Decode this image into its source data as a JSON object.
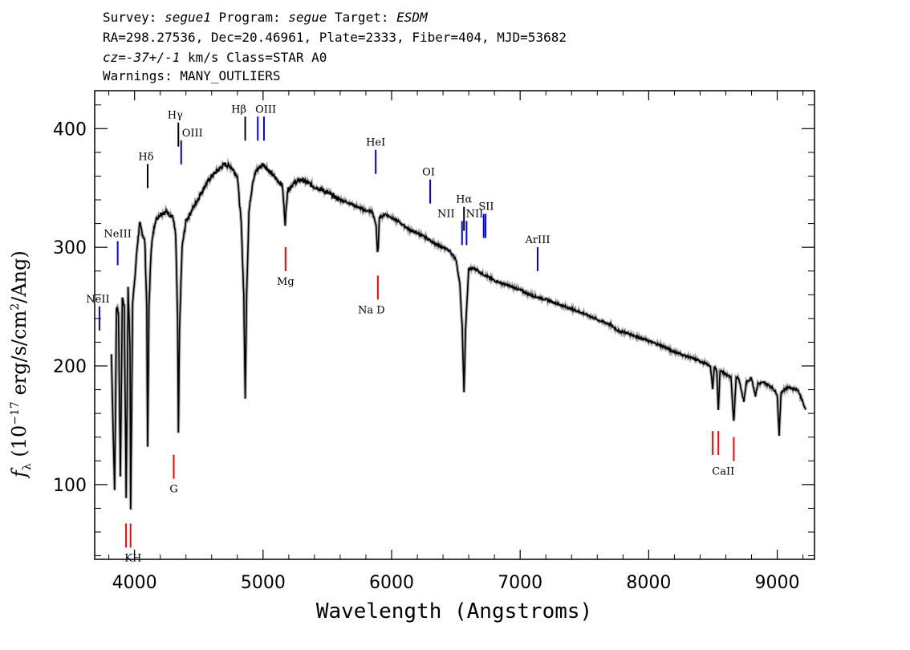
{
  "header": {
    "survey_label": "Survey:",
    "survey_value": "segue1",
    "program_label": "Program:",
    "program_value": "segue",
    "target_label": "Target:",
    "target_value": "ESDM",
    "line2": "RA=298.27536, Dec=20.46961, Plate=2333, Fiber=404, MJD=53682",
    "cz_label": "cz=",
    "cz_value": "-37+/-1",
    "cz_rest": " km/s Class=STAR A0",
    "warnings": "Warnings: MANY_OUTLIERS"
  },
  "chart_data": {
    "type": "line",
    "title": "",
    "xlabel": "Wavelength (Angstroms)",
    "ylabel": "f_λ (10^-17 erg/s/cm^2/Ang)",
    "xlim": [
      3690,
      9290
    ],
    "ylim": [
      37,
      432
    ],
    "x_ticks": [
      4000,
      5000,
      6000,
      7000,
      8000,
      9000
    ],
    "y_ticks": [
      100,
      200,
      300,
      400
    ],
    "grid": false,
    "series": [
      {
        "color": "#000000",
        "points": [
          [
            3820,
            210
          ],
          [
            3835,
            140
          ],
          [
            3845,
            95
          ],
          [
            3860,
            250
          ],
          [
            3875,
            245
          ],
          [
            3890,
            105
          ],
          [
            3905,
            258
          ],
          [
            3920,
            250
          ],
          [
            3935,
            90
          ],
          [
            3950,
            265
          ],
          [
            3965,
            215
          ],
          [
            3970,
            78
          ],
          [
            3985,
            255
          ],
          [
            4000,
            270
          ],
          [
            4020,
            300
          ],
          [
            4040,
            320
          ],
          [
            4060,
            312
          ],
          [
            4080,
            305
          ],
          [
            4095,
            250
          ],
          [
            4102,
            130
          ],
          [
            4112,
            250
          ],
          [
            4130,
            300
          ],
          [
            4160,
            322
          ],
          [
            4200,
            328
          ],
          [
            4250,
            330
          ],
          [
            4300,
            325
          ],
          [
            4320,
            310
          ],
          [
            4335,
            240
          ],
          [
            4341,
            142
          ],
          [
            4350,
            230
          ],
          [
            4370,
            300
          ],
          [
            4400,
            322
          ],
          [
            4450,
            332
          ],
          [
            4500,
            342
          ],
          [
            4550,
            352
          ],
          [
            4600,
            360
          ],
          [
            4650,
            365
          ],
          [
            4700,
            370
          ],
          [
            4750,
            368
          ],
          [
            4800,
            360
          ],
          [
            4830,
            320
          ],
          [
            4850,
            260
          ],
          [
            4861,
            172
          ],
          [
            4872,
            260
          ],
          [
            4890,
            330
          ],
          [
            4920,
            356
          ],
          [
            4950,
            365
          ],
          [
            5000,
            370
          ],
          [
            5050,
            364
          ],
          [
            5100,
            358
          ],
          [
            5150,
            352
          ],
          [
            5172,
            320
          ],
          [
            5190,
            348
          ],
          [
            5250,
            355
          ],
          [
            5300,
            357
          ],
          [
            5350,
            354
          ],
          [
            5400,
            351
          ],
          [
            5450,
            349
          ],
          [
            5500,
            346
          ],
          [
            5550,
            343
          ],
          [
            5600,
            340
          ],
          [
            5650,
            338
          ],
          [
            5700,
            336
          ],
          [
            5750,
            333
          ],
          [
            5800,
            331
          ],
          [
            5850,
            330
          ],
          [
            5880,
            318
          ],
          [
            5890,
            296
          ],
          [
            5896,
            300
          ],
          [
            5905,
            325
          ],
          [
            5950,
            328
          ],
          [
            6000,
            325
          ],
          [
            6050,
            322
          ],
          [
            6100,
            318
          ],
          [
            6150,
            314
          ],
          [
            6200,
            312
          ],
          [
            6250,
            309
          ],
          [
            6300,
            306
          ],
          [
            6350,
            302
          ],
          [
            6400,
            300
          ],
          [
            6450,
            297
          ],
          [
            6500,
            290
          ],
          [
            6530,
            270
          ],
          [
            6550,
            230
          ],
          [
            6563,
            177
          ],
          [
            6575,
            230
          ],
          [
            6600,
            282
          ],
          [
            6650,
            282
          ],
          [
            6700,
            278
          ],
          [
            6800,
            272
          ],
          [
            6900,
            268
          ],
          [
            7000,
            264
          ],
          [
            7100,
            259
          ],
          [
            7200,
            256
          ],
          [
            7300,
            252
          ],
          [
            7400,
            248
          ],
          [
            7500,
            244
          ],
          [
            7600,
            239
          ],
          [
            7700,
            235
          ],
          [
            7770,
            229
          ],
          [
            7800,
            229
          ],
          [
            7900,
            225
          ],
          [
            8000,
            221
          ],
          [
            8100,
            217
          ],
          [
            8200,
            212
          ],
          [
            8300,
            208
          ],
          [
            8400,
            204
          ],
          [
            8480,
            200
          ],
          [
            8498,
            180
          ],
          [
            8510,
            200
          ],
          [
            8530,
            196
          ],
          [
            8542,
            162
          ],
          [
            8555,
            196
          ],
          [
            8600,
            193
          ],
          [
            8640,
            190
          ],
          [
            8662,
            153
          ],
          [
            8680,
            190
          ],
          [
            8700,
            190
          ],
          [
            8740,
            170
          ],
          [
            8760,
            186
          ],
          [
            8800,
            190
          ],
          [
            8830,
            175
          ],
          [
            8850,
            185
          ],
          [
            8900,
            186
          ],
          [
            8960,
            182
          ],
          [
            9000,
            176
          ],
          [
            9015,
            142
          ],
          [
            9030,
            178
          ],
          [
            9080,
            182
          ],
          [
            9120,
            181
          ],
          [
            9160,
            180
          ],
          [
            9190,
            172
          ],
          [
            9220,
            163
          ]
        ]
      }
    ],
    "emission_lines": [
      {
        "name": "NeII",
        "wave": 3727,
        "y": 240
      },
      {
        "name": "NeIII",
        "wave": 3869,
        "y": 295
      },
      {
        "name": "Hδ",
        "wave": 4102,
        "y": 360
      },
      {
        "name": "Hγ",
        "wave": 4341,
        "y": 395
      },
      {
        "name": "OIII",
        "wave": 4363,
        "y": 380
      },
      {
        "name": "Hβ",
        "wave": 4861,
        "y": 400
      },
      {
        "name": "OIII",
        "wave": 4959,
        "y": 400
      },
      {
        "name": "OIII",
        "wave": 5007,
        "y": 400
      },
      {
        "name": "HeI",
        "wave": 5876,
        "y": 372
      },
      {
        "name": "OI",
        "wave": 6300,
        "y": 347
      },
      {
        "name": "NII",
        "wave": 6548,
        "y": 312
      },
      {
        "name": "Hα",
        "wave": 6563,
        "y": 324
      },
      {
        "name": "NII",
        "wave": 6583,
        "y": 312
      },
      {
        "name": "SII",
        "wave": 6716,
        "y": 318
      },
      {
        "name": "SII",
        "wave": 6731,
        "y": 318
      },
      {
        "name": "ArIII",
        "wave": 7136,
        "y": 290
      }
    ],
    "absorption_lines": [
      {
        "name": "K",
        "wave": 3934,
        "y": 57
      },
      {
        "name": "H",
        "wave": 3969,
        "y": 57
      },
      {
        "name": "G",
        "wave": 4305,
        "y": 115
      },
      {
        "name": "Mg",
        "wave": 5175,
        "y": 290
      },
      {
        "name": "Na D",
        "wave": 5893,
        "y": 266
      },
      {
        "name": "CaII",
        "wave": 8498,
        "y": 135
      },
      {
        "name": "CaII",
        "wave": 8542,
        "y": 135
      },
      {
        "name": "CaII",
        "wave": 8662,
        "y": 130
      }
    ],
    "label_texts": {
      "NeII": "NeII",
      "NeIII": "NeIII",
      "Hdelta": "Hδ",
      "Hgamma": "Hγ",
      "OIII_a": "OIII",
      "Hbeta": "Hβ",
      "OIII_b": "OIII",
      "HeI": "HeI",
      "OI": "OI",
      "NII_a": "NII",
      "Halpha": "Hα",
      "NII_b": "NII",
      "SII": "SII",
      "ArIII": "ArIII",
      "KH": "KH",
      "G": "G",
      "Mg": "Mg",
      "NaD": "Na D",
      "CaII": "CaII"
    },
    "colors": {
      "spectrum": "#000000",
      "emission": "#0000ff",
      "absorption": "#ff0000",
      "balmer": "#000000",
      "error": "#b0b0b0"
    }
  }
}
